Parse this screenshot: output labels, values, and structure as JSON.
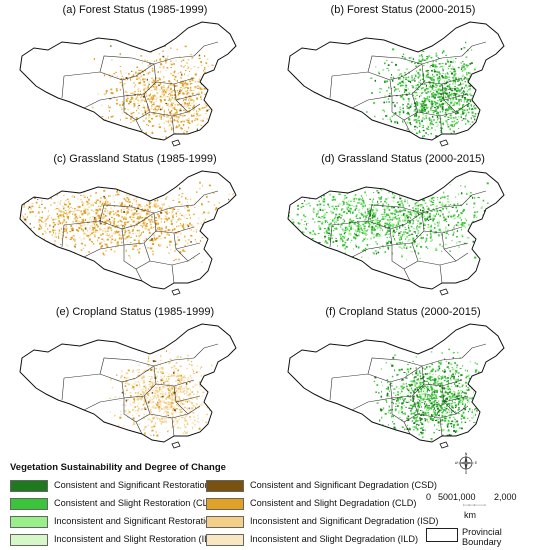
{
  "panels": [
    {
      "title": "(a) Forest Status (1985-1999)",
      "theme": "degradation-east"
    },
    {
      "title": "(b) Forest Status (2000-2015)",
      "theme": "restoration-east"
    },
    {
      "title": "(c) Grassland Status (1985-1999)",
      "theme": "degradation-west"
    },
    {
      "title": "(d) Grassland Status (2000-2015)",
      "theme": "restoration-west"
    },
    {
      "title": "(e) Cropland Status (1985-1999)",
      "theme": "degradation-central"
    },
    {
      "title": "(f) Cropland Status (2000-2015)",
      "theme": "restoration-central"
    }
  ],
  "legend": {
    "title": "Vegetation Sustainability and Degree of Change",
    "items": [
      {
        "label": "Consistent and Significant Restoration (CSR)",
        "color": "#1f7a1f"
      },
      {
        "label": "Consistent and Slight Restoration (CLR)",
        "color": "#39c439"
      },
      {
        "label": "Inconsistent and Significant Restoration (ISR)",
        "color": "#99ef8a"
      },
      {
        "label": "Inconsistent and Slight Restoration (ILR)",
        "color": "#d6f7c8"
      },
      {
        "label": "Consistent and Significant Degradation (CSD)",
        "color": "#7a5210"
      },
      {
        "label": "Consistent and Slight Degradation (CLD)",
        "color": "#e0a126"
      },
      {
        "label": "Inconsistent and Significant Degradation (ISD)",
        "color": "#f3cf88"
      },
      {
        "label": "Inconsistent and Slight Degradation (ILD)",
        "color": "#f8e7c1"
      }
    ]
  },
  "scale": {
    "ticks": [
      "0",
      "5001,000",
      "2,000"
    ],
    "unit": "km"
  },
  "compass": {
    "letters": [
      "N",
      "E",
      "S",
      "W"
    ]
  },
  "boundary_label": "Provincial Boundary"
}
